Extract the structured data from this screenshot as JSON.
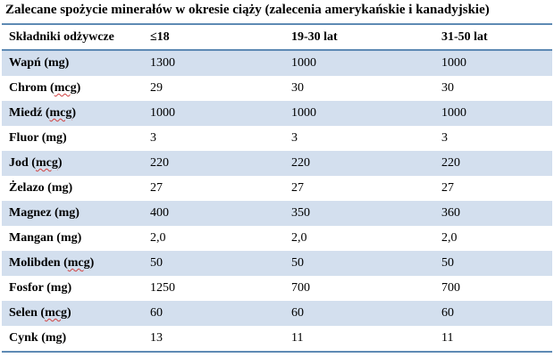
{
  "title": "Zalecane spożycie minerałów w okresie ciąży (zalecenia amerykańskie i kanadyjskie)",
  "table": {
    "headers": [
      "Składniki odżywcze",
      "≤18",
      "19-30 lat",
      "31-50 lat"
    ],
    "rows": [
      {
        "nutrient": "Wapń",
        "unit": "(mg)",
        "values": [
          "1300",
          "1000",
          "1000"
        ]
      },
      {
        "nutrient": "Chrom",
        "unit": "(mcg)",
        "values": [
          "29",
          "30",
          "30"
        ]
      },
      {
        "nutrient": "Miedź",
        "unit": "(mcg)",
        "values": [
          "1000",
          "1000",
          "1000"
        ]
      },
      {
        "nutrient": "Fluor",
        "unit": "(mg)",
        "values": [
          "3",
          "3",
          "3"
        ]
      },
      {
        "nutrient": "Jod",
        "unit": "(mcg)",
        "values": [
          "220",
          "220",
          "220"
        ]
      },
      {
        "nutrient": "Żelazo",
        "unit": "(mg)",
        "values": [
          "27",
          "27",
          "27"
        ]
      },
      {
        "nutrient": "Magnez",
        "unit": "(mg)",
        "values": [
          "400",
          "350",
          "360"
        ]
      },
      {
        "nutrient": "Mangan",
        "unit": "(mg)",
        "values": [
          "2,0",
          "2,0",
          "2,0"
        ]
      },
      {
        "nutrient": "Molibden",
        "unit": "(mcg)",
        "values": [
          "50",
          "50",
          "50"
        ]
      },
      {
        "nutrient": "Fosfor",
        "unit": "(mg)",
        "values": [
          "1250",
          "700",
          "700"
        ]
      },
      {
        "nutrient": "Selen",
        "unit": "(mcg)",
        "values": [
          "60",
          "60",
          "60"
        ]
      },
      {
        "nutrient": "Cynk",
        "unit": "(mg)",
        "values": [
          "13",
          "11",
          "11"
        ]
      }
    ]
  },
  "colors": {
    "band": "#d3dfee",
    "rule": "#5e8ab4",
    "spellcheck": "#d04040"
  }
}
